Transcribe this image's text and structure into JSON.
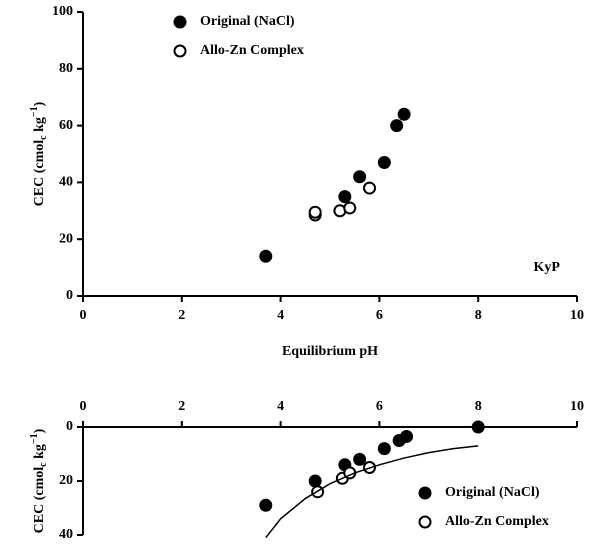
{
  "chart_data": [
    {
      "type": "scatter",
      "xlabel": "Equilibrium pH",
      "ylabel": [
        "CEC (cmol",
        "c",
        " kg",
        "−1",
        ")"
      ],
      "annotation": "KyP",
      "xlim": [
        0,
        10
      ],
      "xticks": [
        0,
        2,
        4,
        6,
        8,
        10
      ],
      "ylim": [
        0,
        100
      ],
      "yticks": [
        0,
        20,
        40,
        60,
        80,
        100
      ],
      "legend": "upper left",
      "series": [
        {
          "name": "Original (NaCl)",
          "color": "#000000",
          "marker": "filled",
          "x": [
            3.7,
            5.3,
            5.6,
            6.1,
            6.35,
            6.5
          ],
          "values": [
            14,
            35,
            42,
            47,
            60,
            64
          ]
        },
        {
          "name": "Allo-Zn Complex",
          "color": "#000000",
          "marker": "open",
          "x": [
            4.7,
            4.7,
            5.2,
            5.4,
            5.8
          ],
          "values": [
            28.5,
            29.5,
            30,
            31,
            38
          ]
        }
      ]
    },
    {
      "type": "scatter",
      "ylabel": [
        "CEC (cmol",
        "c",
        " kg",
        "−1",
        ")"
      ],
      "xlim": [
        0,
        10
      ],
      "xticks": [
        0,
        2,
        4,
        6,
        8,
        10
      ],
      "ylim": [
        0,
        40
      ],
      "yticks": [
        0,
        20,
        40
      ],
      "y_inverted": true,
      "xaxis_top": true,
      "legend": "lower right",
      "series": [
        {
          "name": "Original (NaCl)",
          "color": "#000000",
          "marker": "filled",
          "x": [
            3.7,
            4.7,
            5.3,
            5.6,
            6.1,
            6.4,
            6.55,
            8.0
          ],
          "values": [
            29,
            20,
            14,
            12,
            8,
            5,
            3.5,
            0
          ]
        },
        {
          "name": "Allo-Zn Complex",
          "color": "#000000",
          "marker": "open",
          "x": [
            4.75,
            5.25,
            5.4,
            5.8
          ],
          "values": [
            24,
            19,
            17,
            15
          ]
        },
        {
          "color": "#000000",
          "marker": "line",
          "x": [
            3.7,
            4.0,
            4.5,
            5.0,
            5.5,
            6.0,
            6.5,
            7.0,
            7.5,
            8.0
          ],
          "values": [
            41,
            34,
            26.5,
            21,
            17,
            14,
            11.5,
            9.5,
            8,
            7
          ]
        }
      ]
    }
  ]
}
